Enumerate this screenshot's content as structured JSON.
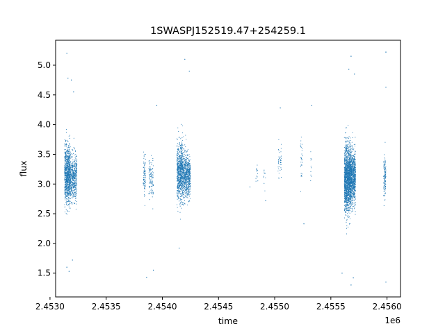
{
  "chart_data": {
    "type": "scatter",
    "title": "1SWASPJ152519.47+254259.1",
    "xlabel": "time",
    "ylabel": "flux",
    "x_offset_label": "1e6",
    "xlim": [
      2.45305,
      2.45612
    ],
    "ylim": [
      1.1,
      5.42
    ],
    "grid": false,
    "point_color": "#1f77b4",
    "xticks": [
      {
        "value": 2.453,
        "label": "2.4530"
      },
      {
        "value": 2.4535,
        "label": "2.4535"
      },
      {
        "value": 2.454,
        "label": "2.4540"
      },
      {
        "value": 2.4545,
        "label": "2.4545"
      },
      {
        "value": 2.455,
        "label": "2.4550"
      },
      {
        "value": 2.4555,
        "label": "2.4555"
      },
      {
        "value": 2.456,
        "label": "2.4560"
      }
    ],
    "yticks": [
      {
        "value": 1.5,
        "label": "1.5"
      },
      {
        "value": 2.0,
        "label": "2.0"
      },
      {
        "value": 2.5,
        "label": "2.5"
      },
      {
        "value": 3.0,
        "label": "3.0"
      },
      {
        "value": 3.5,
        "label": "3.5"
      },
      {
        "value": 4.0,
        "label": "4.0"
      },
      {
        "value": 4.5,
        "label": "4.5"
      },
      {
        "value": 5.0,
        "label": "5.0"
      }
    ],
    "clusters": [
      {
        "x_start": 2.45313,
        "x_end": 2.45318,
        "y_center": 3.15,
        "y_spread": 0.45,
        "n": 900
      },
      {
        "x_start": 2.45318,
        "x_end": 2.45324,
        "y_center": 3.1,
        "y_spread": 0.35,
        "n": 500
      },
      {
        "x_start": 2.45383,
        "x_end": 2.45385,
        "y_center": 3.15,
        "y_spread": 0.3,
        "n": 90
      },
      {
        "x_start": 2.45388,
        "x_end": 2.45392,
        "y_center": 3.1,
        "y_spread": 0.3,
        "n": 110
      },
      {
        "x_start": 2.45413,
        "x_end": 2.45418,
        "y_center": 3.2,
        "y_spread": 0.45,
        "n": 700
      },
      {
        "x_start": 2.45418,
        "x_end": 2.45425,
        "y_center": 3.15,
        "y_spread": 0.35,
        "n": 700
      },
      {
        "x_start": 2.45483,
        "x_end": 2.45485,
        "y_center": 3.15,
        "y_spread": 0.15,
        "n": 12
      },
      {
        "x_start": 2.4549,
        "x_end": 2.45492,
        "y_center": 3.2,
        "y_spread": 0.25,
        "n": 10
      },
      {
        "x_start": 2.45503,
        "x_end": 2.45506,
        "y_center": 3.35,
        "y_spread": 0.3,
        "n": 40
      },
      {
        "x_start": 2.45523,
        "x_end": 2.45525,
        "y_center": 3.4,
        "y_spread": 0.35,
        "n": 30
      },
      {
        "x_start": 2.45532,
        "x_end": 2.45533,
        "y_center": 3.4,
        "y_spread": 0.3,
        "n": 10
      },
      {
        "x_start": 2.45562,
        "x_end": 2.45568,
        "y_center": 3.1,
        "y_spread": 0.5,
        "n": 1600
      },
      {
        "x_start": 2.45568,
        "x_end": 2.45572,
        "y_center": 3.1,
        "y_spread": 0.4,
        "n": 700
      },
      {
        "x_start": 2.45597,
        "x_end": 2.45599,
        "y_center": 3.15,
        "y_spread": 0.35,
        "n": 120
      }
    ],
    "outliers": [
      {
        "x": 2.45315,
        "y": 5.2
      },
      {
        "x": 2.45316,
        "y": 4.78
      },
      {
        "x": 2.45319,
        "y": 4.75
      },
      {
        "x": 2.45321,
        "y": 4.55
      },
      {
        "x": 2.45315,
        "y": 1.6
      },
      {
        "x": 2.45317,
        "y": 1.53
      },
      {
        "x": 2.4532,
        "y": 1.72
      },
      {
        "x": 2.45392,
        "y": 1.55
      },
      {
        "x": 2.45386,
        "y": 1.43
      },
      {
        "x": 2.45395,
        "y": 4.32
      },
      {
        "x": 2.4542,
        "y": 5.1
      },
      {
        "x": 2.45424,
        "y": 4.9
      },
      {
        "x": 2.45415,
        "y": 1.92
      },
      {
        "x": 2.45526,
        "y": 2.33
      },
      {
        "x": 2.45505,
        "y": 4.28
      },
      {
        "x": 2.45533,
        "y": 4.32
      },
      {
        "x": 2.45478,
        "y": 2.95
      },
      {
        "x": 2.45492,
        "y": 2.72
      },
      {
        "x": 2.45568,
        "y": 5.15
      },
      {
        "x": 2.45566,
        "y": 4.93
      },
      {
        "x": 2.45571,
        "y": 4.85
      },
      {
        "x": 2.45568,
        "y": 1.3
      },
      {
        "x": 2.4557,
        "y": 1.42
      },
      {
        "x": 2.4556,
        "y": 1.5
      },
      {
        "x": 2.45599,
        "y": 5.22
      },
      {
        "x": 2.45599,
        "y": 4.63
      },
      {
        "x": 2.45599,
        "y": 1.35
      }
    ]
  }
}
